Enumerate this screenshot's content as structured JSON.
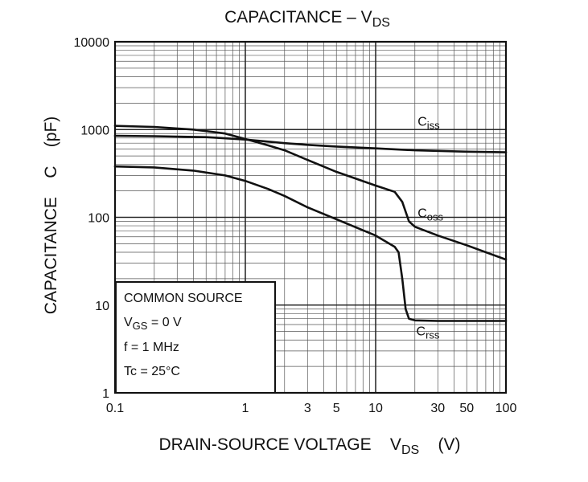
{
  "chart_data": {
    "type": "line",
    "title": {
      "main": "CAPACITANCE – V",
      "sub": "DS"
    },
    "xlabel": {
      "main": "DRAIN-SOURCE VOLTAGE",
      "sym": "V",
      "sub": "DS",
      "unit": "(V)"
    },
    "ylabel": {
      "main": "CAPACITANCE",
      "sym": "C",
      "unit": "(pF)"
    },
    "x_scale": "log",
    "y_scale": "log",
    "xlim": [
      0.1,
      100
    ],
    "ylim": [
      1,
      10000
    ],
    "grid": true,
    "x_ticks": [
      {
        "v": 0.1,
        "t": "0.1"
      },
      {
        "v": 1,
        "t": "1"
      },
      {
        "v": 3,
        "t": "3"
      },
      {
        "v": 5,
        "t": "5"
      },
      {
        "v": 10,
        "t": "10"
      },
      {
        "v": 30,
        "t": "30"
      },
      {
        "v": 50,
        "t": "50"
      },
      {
        "v": 100,
        "t": "100"
      }
    ],
    "y_ticks": [
      {
        "v": 1,
        "t": "1"
      },
      {
        "v": 10,
        "t": "10"
      },
      {
        "v": 100,
        "t": "100"
      },
      {
        "v": 1000,
        "t": "1000"
      },
      {
        "v": 10000,
        "t": "10000"
      }
    ],
    "series": [
      {
        "name": "Ciss",
        "label_main": "C",
        "label_sub": "iss",
        "label_at": [
          21,
          1100
        ],
        "points": [
          [
            0.1,
            850
          ],
          [
            0.2,
            840
          ],
          [
            0.5,
            820
          ],
          [
            1,
            770
          ],
          [
            2,
            700
          ],
          [
            3,
            670
          ],
          [
            5,
            640
          ],
          [
            10,
            610
          ],
          [
            20,
            580
          ],
          [
            50,
            560
          ],
          [
            100,
            550
          ]
        ]
      },
      {
        "name": "Coss",
        "label_main": "C",
        "label_sub": "oss",
        "label_at": [
          21,
          100
        ],
        "points": [
          [
            0.1,
            1100
          ],
          [
            0.2,
            1070
          ],
          [
            0.4,
            1000
          ],
          [
            0.7,
            900
          ],
          [
            1,
            780
          ],
          [
            1.5,
            660
          ],
          [
            2,
            580
          ],
          [
            3,
            450
          ],
          [
            5,
            330
          ],
          [
            10,
            230
          ],
          [
            14,
            195
          ],
          [
            16,
            150
          ],
          [
            18,
            90
          ],
          [
            20,
            78
          ],
          [
            30,
            62
          ],
          [
            50,
            48
          ],
          [
            100,
            33
          ]
        ]
      },
      {
        "name": "Crss",
        "label_main": "C",
        "label_sub": "rss",
        "label_at": [
          20.5,
          4.5
        ],
        "points": [
          [
            0.1,
            380
          ],
          [
            0.2,
            370
          ],
          [
            0.4,
            340
          ],
          [
            0.7,
            300
          ],
          [
            1,
            260
          ],
          [
            1.5,
            210
          ],
          [
            2,
            175
          ],
          [
            3,
            130
          ],
          [
            5,
            95
          ],
          [
            10,
            62
          ],
          [
            14,
            46
          ],
          [
            15,
            40
          ],
          [
            16,
            20
          ],
          [
            17,
            9
          ],
          [
            18,
            7
          ],
          [
            20,
            6.7
          ],
          [
            30,
            6.6
          ],
          [
            50,
            6.6
          ],
          [
            100,
            6.6
          ]
        ]
      }
    ],
    "conditions": [
      {
        "main": "COMMON SOURCE",
        "sub": "",
        "tail": ""
      },
      {
        "main": "V",
        "sub": "GS",
        "tail": " = 0 V"
      },
      {
        "main": "f = 1 MHz",
        "sub": "",
        "tail": ""
      },
      {
        "main": "Tc = 25°C",
        "sub": "",
        "tail": ""
      }
    ]
  }
}
